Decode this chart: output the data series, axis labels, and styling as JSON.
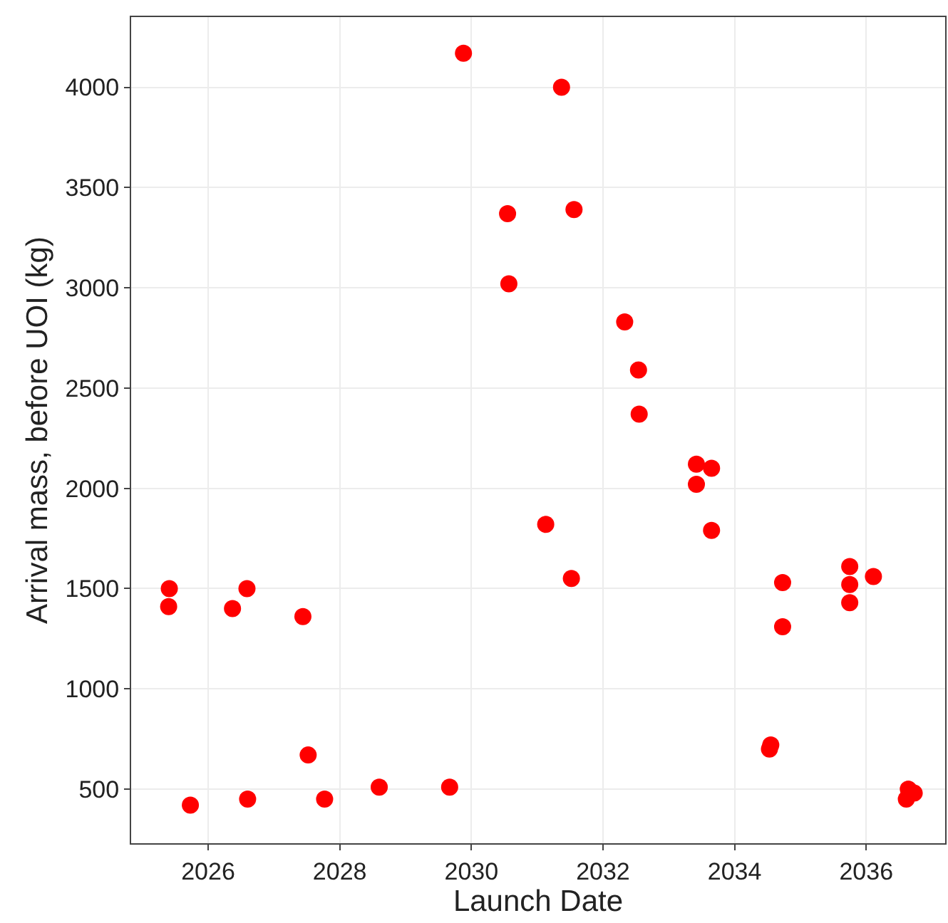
{
  "chart_data": {
    "type": "scatter",
    "xlabel": "Launch Date",
    "ylabel": "Arrival mass, before UOI (kg)",
    "marker": "circle",
    "grid": true,
    "xlim": [
      2024.83,
      2037.2
    ],
    "xticks": [
      2026,
      2028,
      2030,
      2032,
      2034,
      2036
    ],
    "ylim": [
      230,
      4350
    ],
    "yticks": [
      500,
      1000,
      1500,
      2000,
      2500,
      3000,
      3500,
      4000
    ],
    "series": [
      {
        "color": "#ff0000",
        "x": [
          2029.88,
          2031.37,
          2030.55,
          2031.56,
          2030.57,
          2032.33,
          2032.54,
          2032.55,
          2033.42,
          2033.65,
          2033.42,
          2033.65,
          2031.13,
          2031.52,
          2025.41,
          2025.4,
          2026.37,
          2026.59,
          2027.44,
          2025.73,
          2026.6,
          2027.52,
          2027.77,
          2028.6,
          2029.67,
          2034.73,
          2034.73,
          2034.55,
          2034.53,
          2035.75,
          2035.75,
          2035.75,
          2036.11,
          2036.64,
          2036.61,
          2036.73
        ],
        "values": [
          4170,
          4000,
          3370,
          3390,
          3020,
          2830,
          2590,
          2370,
          2120,
          2100,
          2020,
          1790,
          1820,
          1550,
          1500,
          1410,
          1400,
          1500,
          1360,
          420,
          450,
          670,
          450,
          510,
          510,
          1530,
          1310,
          720,
          700,
          1610,
          1520,
          1430,
          1560,
          500,
          450,
          480
        ]
      }
    ]
  }
}
